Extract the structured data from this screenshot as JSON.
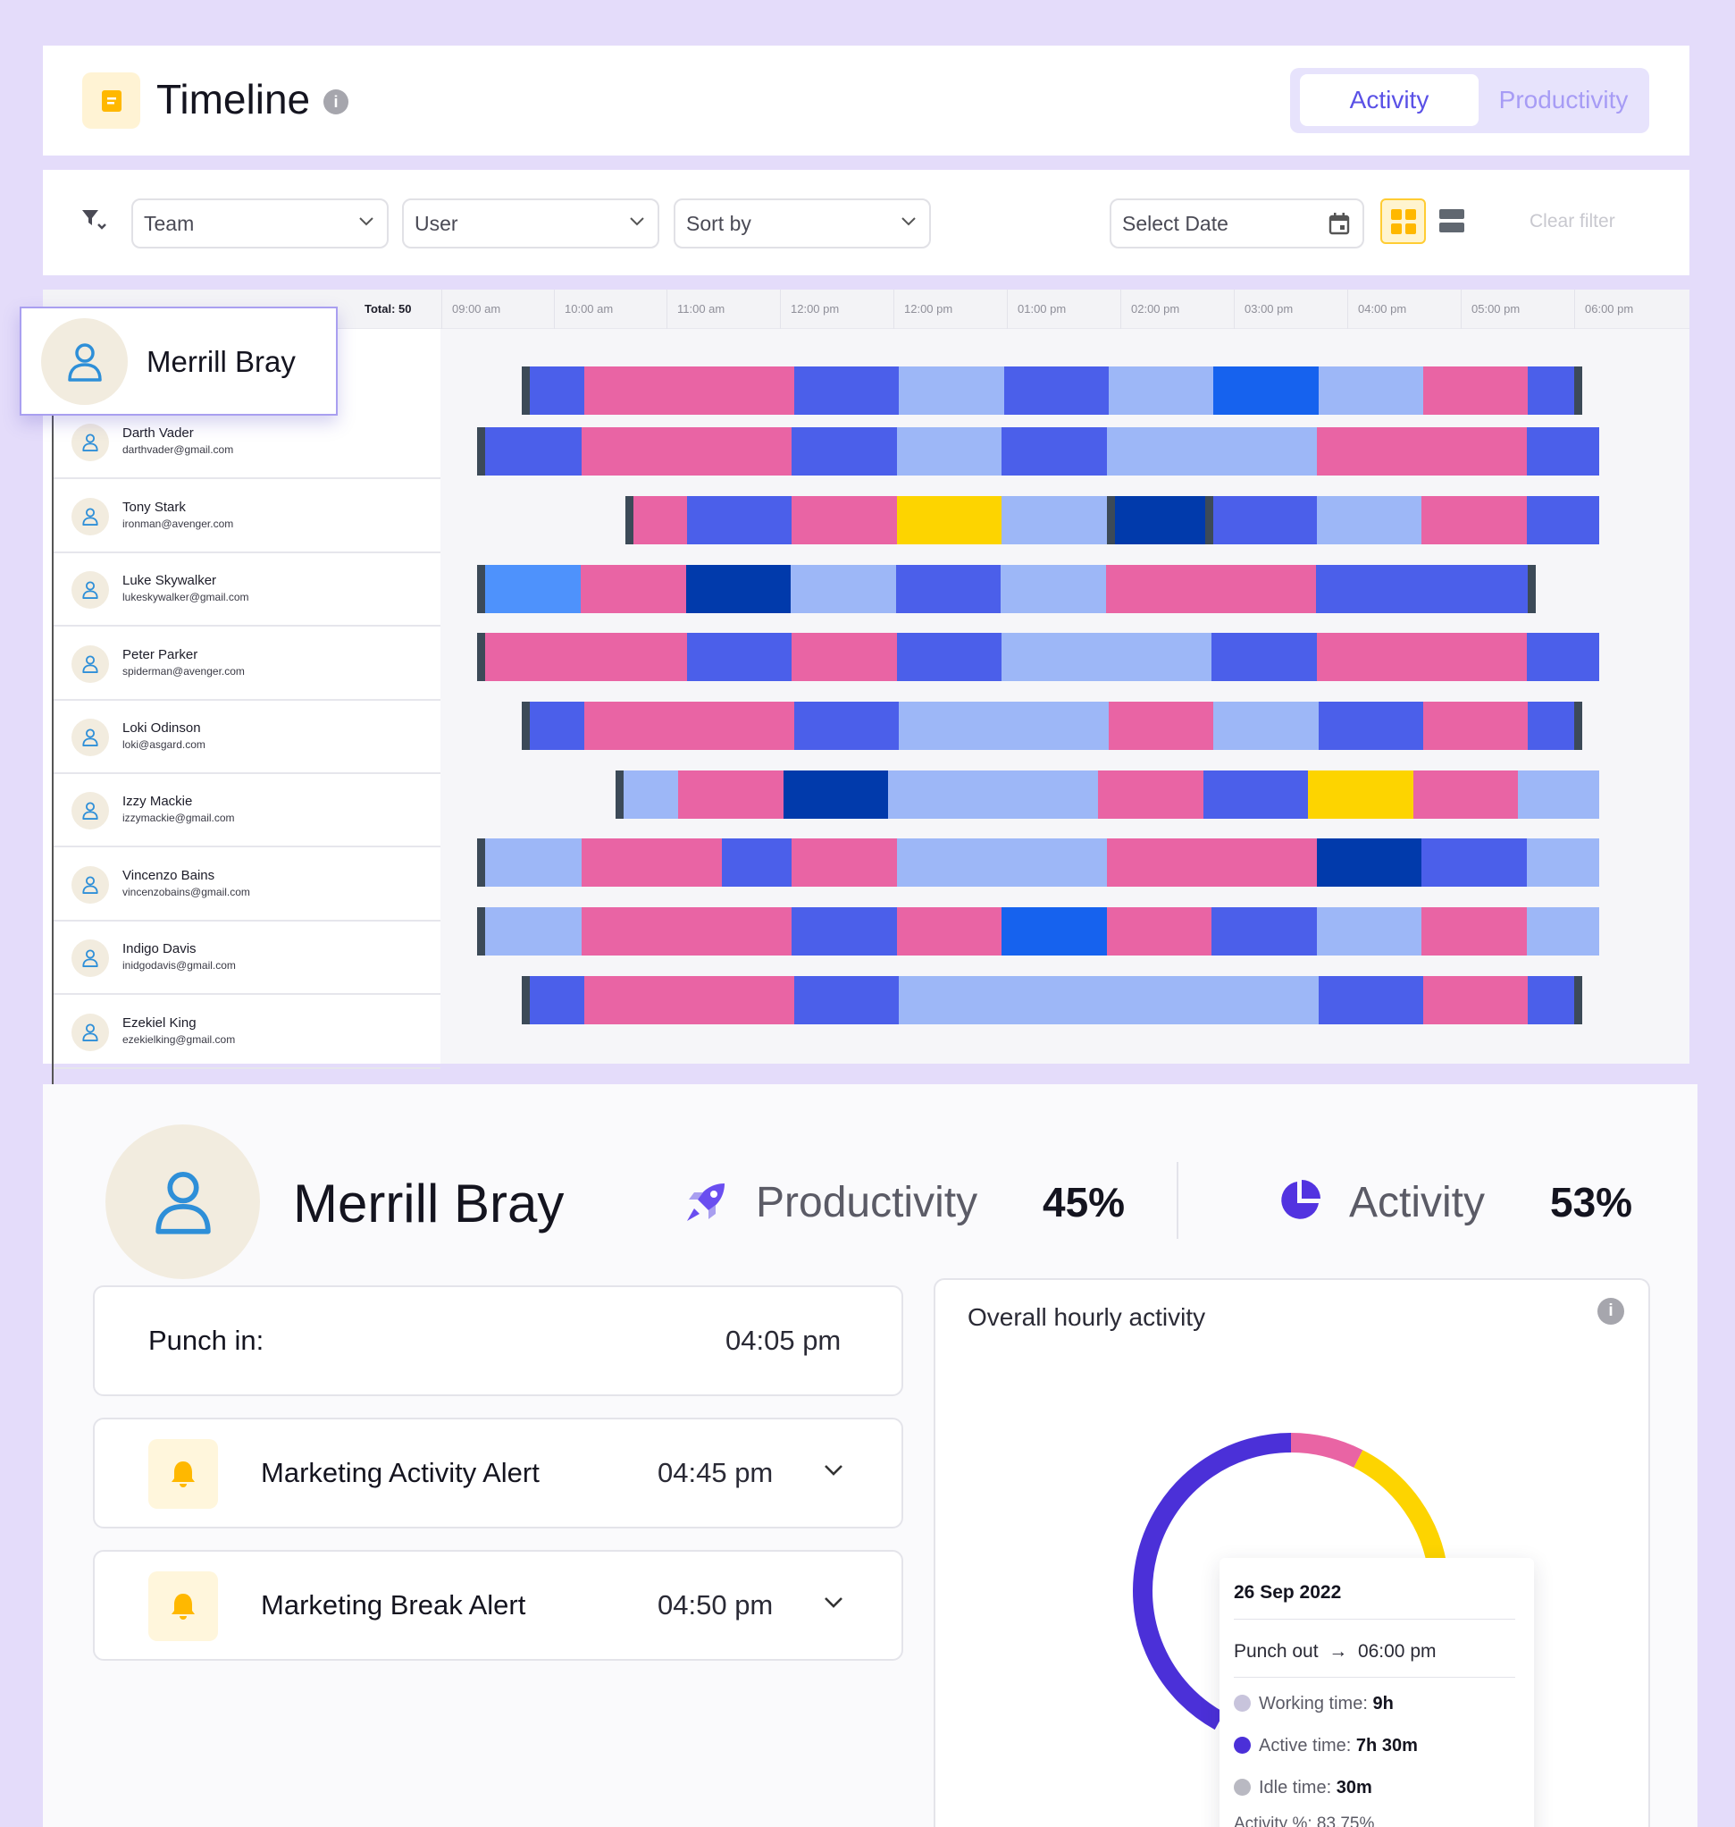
{
  "header": {
    "title": "Timeline",
    "info_icon": "info-icon",
    "tabs": [
      {
        "label": "Activity",
        "active": true
      },
      {
        "label": "Productivity",
        "active": false
      }
    ]
  },
  "filters": {
    "team_placeholder": "Team",
    "user_placeholder": "User",
    "sort_placeholder": "Sort by",
    "date_placeholder": "Select Date",
    "clear_label": "Clear filter"
  },
  "timeline": {
    "total_label": "Total: 50",
    "hours": [
      "09:00 am",
      "10:00 am",
      "11:00 am",
      "12:00 pm",
      "12:00 pm",
      "01:00 pm",
      "02:00 pm",
      "03:00 pm",
      "04:00 pm",
      "05:00 pm",
      "06:00 pm"
    ],
    "colors": {
      "P": "#e964a4",
      "B": "#4b5fea",
      "L": "#9db7f7",
      "D": "#013aab",
      "Y": "#fdd400",
      "C": "#1662ee",
      "S": "#4e92fc"
    },
    "selected_user": {
      "name": "Merrill Bray"
    },
    "users": [
      {
        "name": "Darth Vader",
        "email": "darthvader@gmail.com"
      },
      {
        "name": "Tony Stark",
        "email": "ironman@avenger.com"
      },
      {
        "name": "Luke Skywalker",
        "email": "lukeskywalker@gmail.com"
      },
      {
        "name": "Peter Parker",
        "email": "spiderman@avenger.com"
      },
      {
        "name": "Loki Odinson",
        "email": "loki@asgard.com"
      },
      {
        "name": "Izzy Mackie",
        "email": "izzymackie@gmail.com"
      },
      {
        "name": "Vincenzo Bains",
        "email": "vincenzobains@gmail.com"
      },
      {
        "name": "Indigo Davis",
        "email": "inidgodavis@gmail.com"
      },
      {
        "name": "Ezekiel King",
        "email": "ezekielking@gmail.com"
      }
    ]
  },
  "detail": {
    "name": "Merrill Bray",
    "productivity_label": "Productivity",
    "productivity_value": "45%",
    "activity_label": "Activity",
    "activity_value": "53%",
    "punch_in_label": "Punch in:",
    "punch_in_time": "04:05 pm",
    "alerts": [
      {
        "title": "Marketing Activity Alert",
        "time": "04:45 pm"
      },
      {
        "title": "Marketing Break Alert",
        "time": "04:50 pm"
      }
    ],
    "hourly": {
      "title": "Overall hourly activity",
      "donut_segments": [
        {
          "color": "#e964a4",
          "fraction": 0.075
        },
        {
          "color": "#fdd400",
          "fraction": 0.155
        },
        {
          "color": "#4b30d8",
          "fraction": 0.28
        }
      ],
      "tooltip": {
        "date": "26 Sep 2022",
        "punch_out_label": "Punch out",
        "punch_out_time": "06:00 pm",
        "items": [
          {
            "label": "Working time:",
            "value": "9h",
            "color": "#c8c4dc"
          },
          {
            "label": "Active time:",
            "value": "7h 30m",
            "color": "#4b30d8"
          },
          {
            "label": "Idle time:",
            "value": "30m",
            "color": "#b9b9c2"
          }
        ],
        "cut_text": "Activity %: 83.75%"
      }
    }
  }
}
